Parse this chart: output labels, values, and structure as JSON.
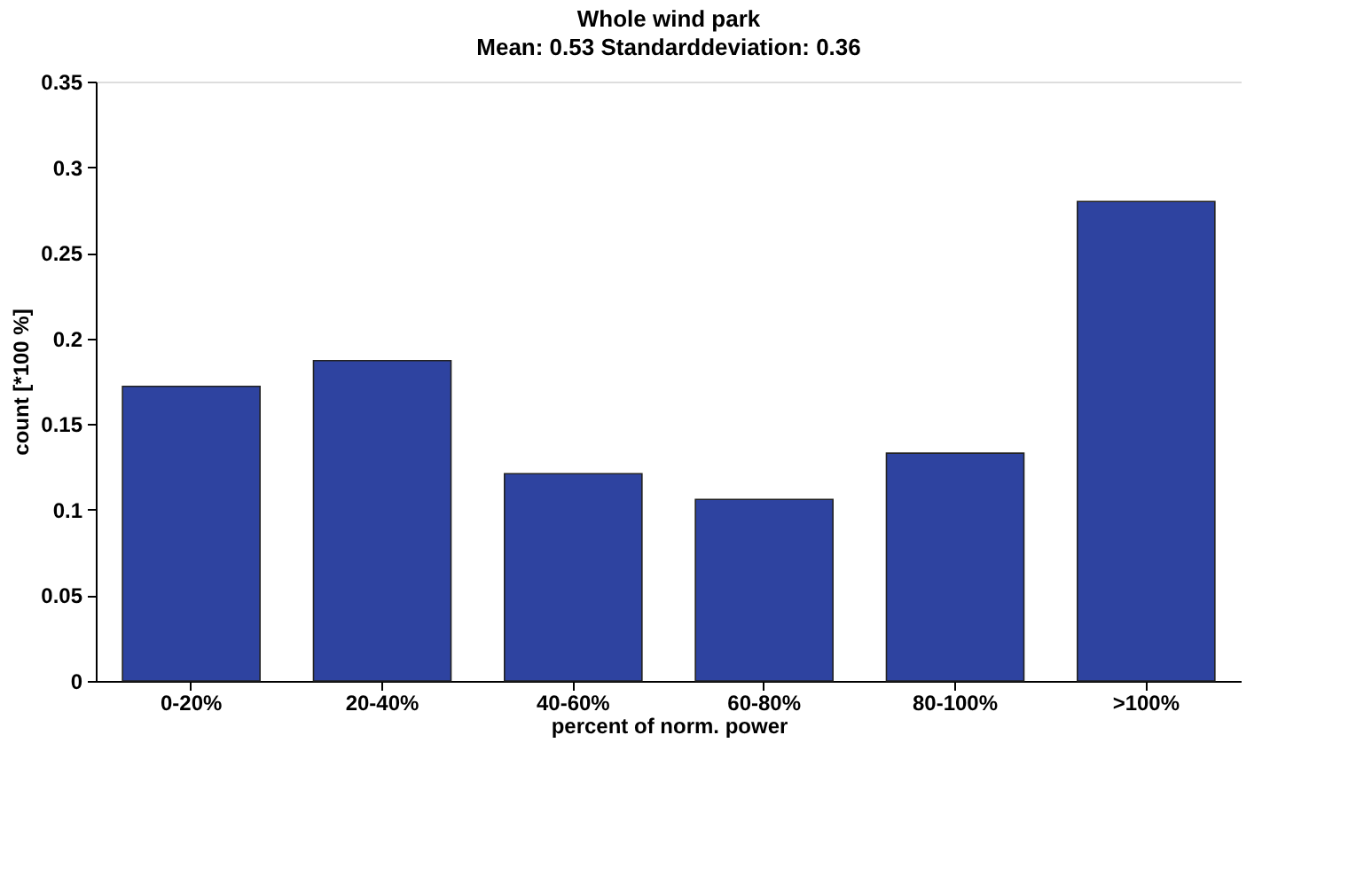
{
  "chart_data": {
    "type": "bar",
    "title": "Whole wind park",
    "subtitle": "Mean: 0.53   Standarddeviation: 0.36",
    "xlabel": "percent of norm. power",
    "ylabel": "count [*100 %]",
    "categories": [
      "0-20%",
      "20-40%",
      "40-60%",
      "60-80%",
      "80-100%",
      ">100%"
    ],
    "values": [
      0.172,
      0.187,
      0.121,
      0.106,
      0.133,
      0.28
    ],
    "color": "#2e43a0",
    "ylim": [
      0,
      0.35
    ],
    "yticks": [
      0,
      0.05,
      0.1,
      0.15,
      0.2,
      0.25,
      0.3,
      0.35
    ],
    "grid": false
  }
}
